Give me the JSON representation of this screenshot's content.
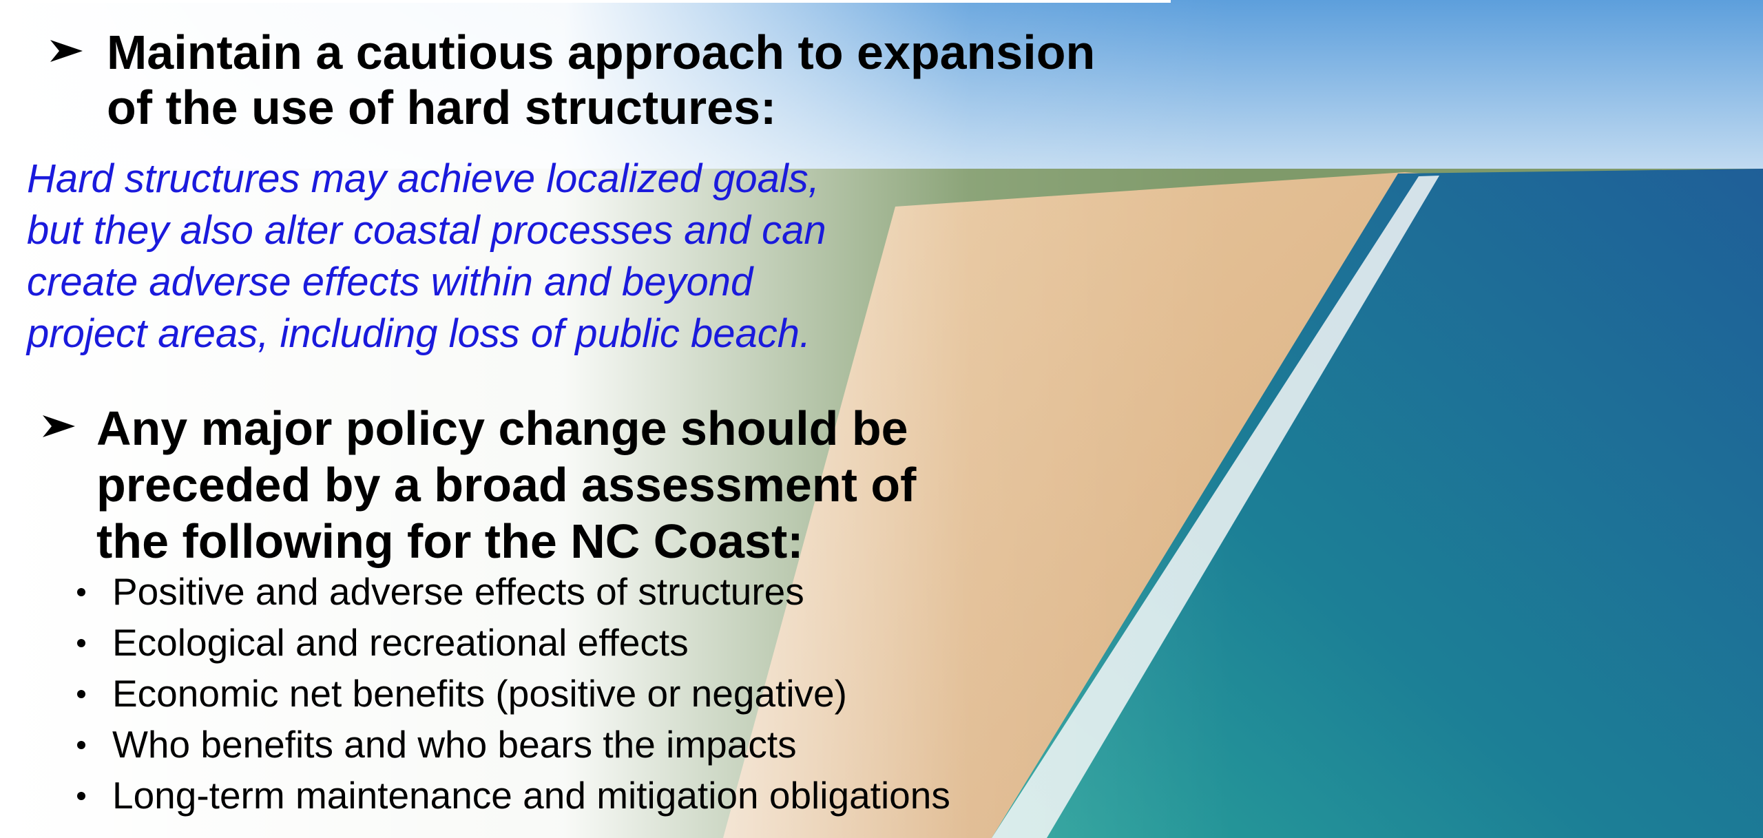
{
  "heading_1": {
    "lines": [
      "Maintain a cautious approach to expansion",
      "of the use of hard structures:"
    ]
  },
  "paragraph": {
    "lines": [
      "Hard structures may achieve localized goals,",
      "but they also alter coastal processes and can",
      "create adverse effects within and beyond",
      "project areas, including loss of public beach."
    ]
  },
  "heading_2": {
    "lines": [
      "Any major policy change should be",
      "preceded by a broad assessment of",
      "the following for the NC Coast:"
    ]
  },
  "bullets": [
    "Positive and adverse effects of structures",
    "Ecological and recreational effects",
    "Economic net benefits (positive or negative)",
    "Who benefits and who bears the impacts",
    "Long-term maintenance and mitigation obligations"
  ]
}
